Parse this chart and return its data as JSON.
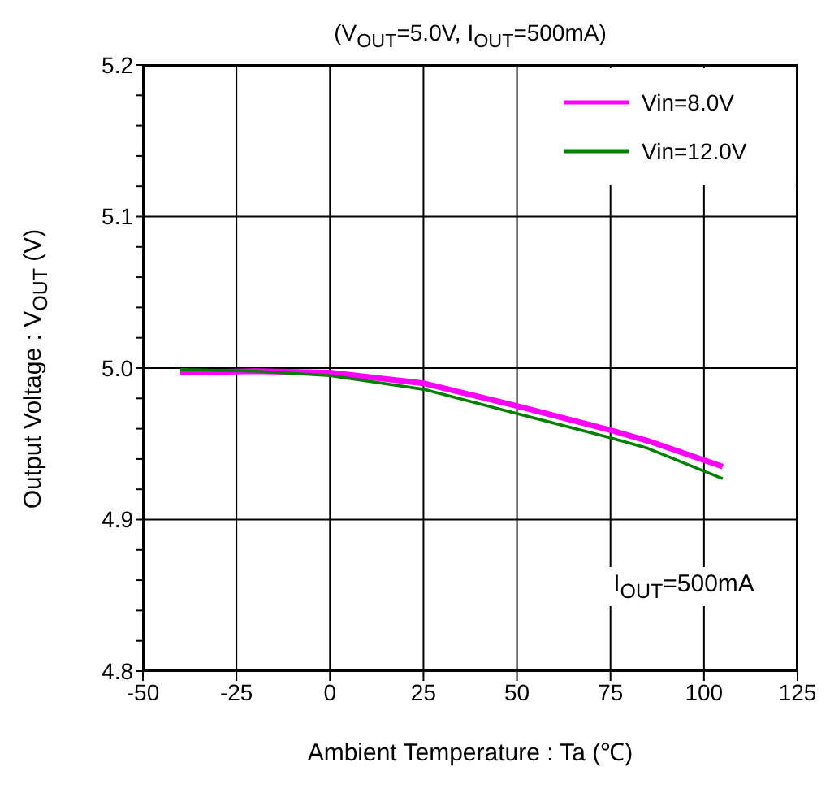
{
  "chart_data": {
    "type": "line",
    "title": "(V$_{OUT}$=5.0V, I$_{OUT}$=500mA)",
    "xlabel": "Ambient Temperature : Ta (℃)",
    "ylabel": "Output Voltage : V$_{OUT}$ (V)",
    "x": [
      -40,
      -20,
      0,
      25,
      50,
      75,
      85,
      105
    ],
    "series": [
      {
        "name": "Vin=8.0V",
        "color": "#ff00ff",
        "values": [
          4.997,
          4.998,
          4.997,
          4.99,
          4.975,
          4.959,
          4.952,
          4.935
        ]
      },
      {
        "name": "Vin=12.0V",
        "color": "#008000",
        "values": [
          4.999,
          4.998,
          4.995,
          4.986,
          4.97,
          4.954,
          4.947,
          4.927
        ]
      }
    ],
    "xlim": [
      -50,
      125
    ],
    "xticks": [
      -50,
      -25,
      0,
      25,
      50,
      75,
      100,
      125
    ],
    "ylim": [
      4.8,
      5.2
    ],
    "yticks": [
      {
        "value": 4.8,
        "label": "4.8"
      },
      {
        "value": 4.82,
        "label": null
      },
      {
        "value": 4.84,
        "label": null
      },
      {
        "value": 4.86,
        "label": null
      },
      {
        "value": 4.88,
        "label": null
      },
      {
        "value": 4.9,
        "label": "4.9"
      },
      {
        "value": 4.92,
        "label": null
      },
      {
        "value": 4.94,
        "label": null
      },
      {
        "value": 4.96,
        "label": null
      },
      {
        "value": 4.98,
        "label": null
      },
      {
        "value": 5.0,
        "label": "5.0"
      },
      {
        "value": 5.02,
        "label": null
      },
      {
        "value": 5.04,
        "label": null
      },
      {
        "value": 5.06,
        "label": null
      },
      {
        "value": 5.08,
        "label": null
      },
      {
        "value": 5.1,
        "label": "5.1"
      },
      {
        "value": 5.12,
        "label": null
      },
      {
        "value": 5.14,
        "label": null
      },
      {
        "value": 5.16,
        "label": null
      },
      {
        "value": 5.18,
        "label": null
      },
      {
        "value": 5.2,
        "label": "5.2"
      }
    ],
    "grid": true,
    "legend": "top right",
    "marker": "none",
    "line_style": "solid",
    "annotations": [
      "I$_{OUT}$=500mA"
    ]
  }
}
